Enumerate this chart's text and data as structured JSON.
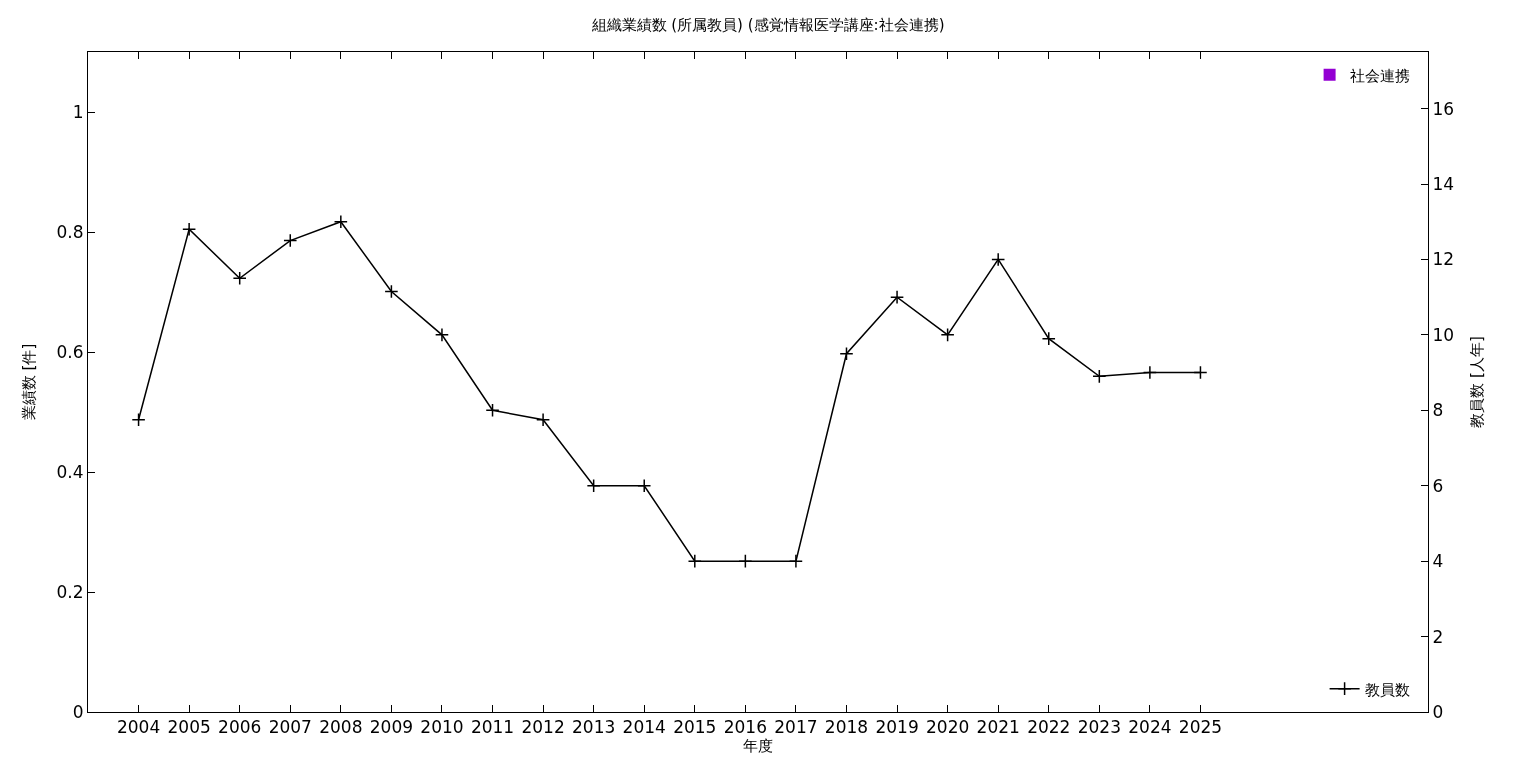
{
  "chart_data": {
    "type": "bar",
    "title": "組織業績数 (所属教員) (感覚情報医学講座:社会連携)",
    "xlabel": "年度",
    "ylabel": "業績数 [件]",
    "y2label": "教員数 [人年]",
    "x": [
      2004,
      2005,
      2006,
      2007,
      2008,
      2009,
      2010,
      2011,
      2012,
      2013,
      2014,
      2015,
      2016,
      2017,
      2018,
      2019,
      2020,
      2021,
      2022,
      2023,
      2024,
      2025
    ],
    "series": [
      {
        "name": "社会連携",
        "color": "#9400d3",
        "values": [
          0,
          0,
          0,
          0,
          0,
          0,
          0,
          0,
          0,
          0,
          0,
          0,
          0,
          0,
          0,
          0,
          0,
          0,
          0,
          0,
          0,
          0
        ]
      },
      {
        "name": "教員数",
        "type": "line",
        "axis": "y2",
        "color": "#000000",
        "marker": "cross",
        "values": [
          7.75,
          12.8,
          11.5,
          12.5,
          13,
          11.15,
          10,
          8,
          7.75,
          6,
          6,
          4,
          4,
          4,
          9.5,
          11,
          10,
          12,
          9.9,
          8.9,
          9,
          9
        ]
      }
    ],
    "xlim": [
      2003,
      2029.5
    ],
    "xticks": [
      2004,
      2005,
      2006,
      2007,
      2008,
      2009,
      2010,
      2011,
      2012,
      2013,
      2014,
      2015,
      2016,
      2017,
      2018,
      2019,
      2020,
      2021,
      2022,
      2023,
      2024,
      2025
    ],
    "ylim": [
      0,
      1.1
    ],
    "yticks": [
      0,
      0.2,
      0.4,
      0.6,
      0.8,
      1
    ],
    "y2lim": [
      0,
      17.5
    ],
    "y2ticks": [
      0,
      2,
      4,
      6,
      8,
      10,
      12,
      14,
      16
    ],
    "legend": "right"
  }
}
